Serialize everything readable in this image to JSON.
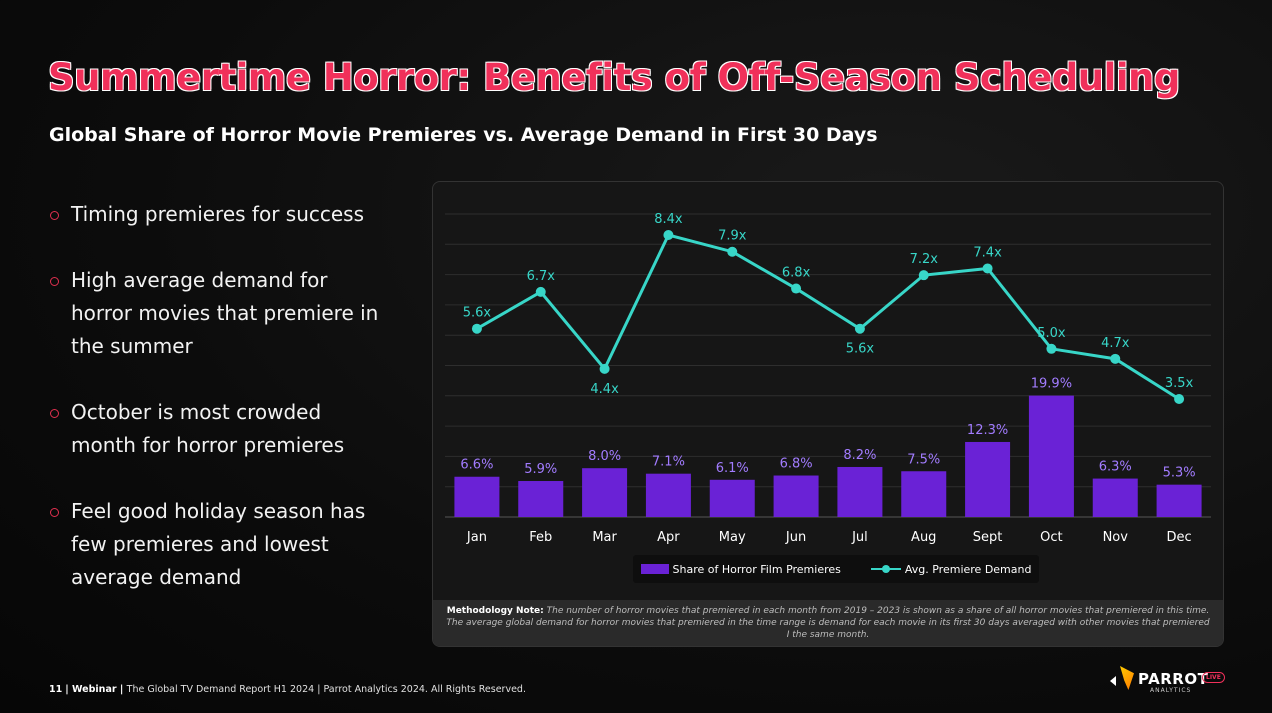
{
  "title": "Summertime Horror: Benefits of Off-Season Scheduling",
  "subtitle": "Global Share of Horror Movie Premieres vs. Average Demand in First 30 Days",
  "bullets": [
    "Timing premieres for success",
    "High average demand for horror movies that premiere in the summer",
    "October is most crowded month for horror premieres",
    "Feel good holiday season has few premieres and lowest average demand"
  ],
  "legend": {
    "bars": "Share of Horror Film Premieres",
    "line": "Avg. Premiere Demand"
  },
  "methodology": {
    "label": "Methodology Note:",
    "text": "The number of horror movies that premiered in each month from 2019 – 2023 is shown as a share of all horror movies that premiered in this time. The average global demand for horror movies that premiered in the time range is demand for each movie in its first 30 days averaged with other movies that premiered I the same month."
  },
  "footer": {
    "page": "11",
    "section": "Webinar",
    "report": "The Global TV Demand Report H1 2024",
    "rights": "Parrot Analytics 2024. All Rights Reserved."
  },
  "logo": {
    "name": "PARROT",
    "sub": "ANALYTICS",
    "badge": "LIVE"
  },
  "colors": {
    "accent": "#f0305a",
    "bar": "#6a22d6",
    "line": "#38d6c8"
  },
  "chart_data": {
    "type": "bar",
    "categories": [
      "Jan",
      "Feb",
      "Mar",
      "Apr",
      "May",
      "Jun",
      "Jul",
      "Aug",
      "Sept",
      "Oct",
      "Nov",
      "Dec"
    ],
    "series": [
      {
        "name": "Share of Horror Film Premieres",
        "type": "bar",
        "values": [
          6.6,
          5.9,
          8.0,
          7.1,
          6.1,
          6.8,
          8.2,
          7.5,
          12.3,
          19.9,
          6.3,
          5.3
        ],
        "labels": [
          "6.6%",
          "5.9%",
          "8.0%",
          "7.1%",
          "6.1%",
          "6.8%",
          "8.2%",
          "7.5%",
          "12.3%",
          "19.9%",
          "6.3%",
          "5.3%"
        ]
      },
      {
        "name": "Avg. Premiere Demand",
        "type": "line",
        "values": [
          5.6,
          6.7,
          4.4,
          8.4,
          7.9,
          6.8,
          5.6,
          7.2,
          7.4,
          5.0,
          4.7,
          3.5
        ],
        "labels": [
          "5.6x",
          "6.7x",
          "4.4x",
          "8.4x",
          "7.9x",
          "6.8x",
          "5.6x",
          "7.2x",
          "7.4x",
          "5.0x",
          "4.7x",
          "3.5x"
        ]
      }
    ],
    "legend": "bottom",
    "grid": true
  }
}
